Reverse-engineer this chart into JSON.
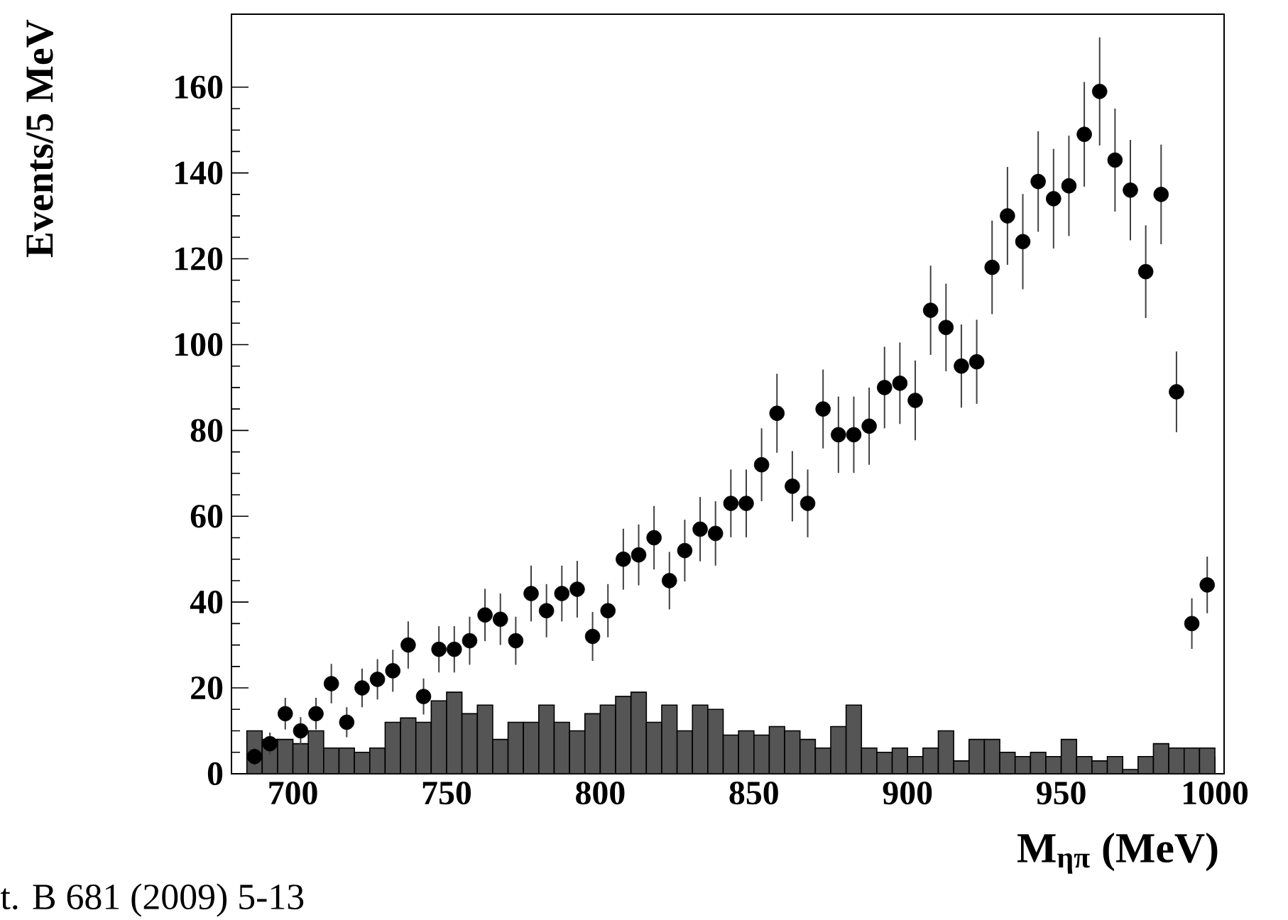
{
  "chart_data": {
    "type": "scatter",
    "xlabel": "M$_{ηπ}$ (MeV)",
    "ylabel": "Events/5 MeV",
    "xlim": [
      680,
      1003
    ],
    "ylim": [
      0,
      177
    ],
    "xticks": [
      700,
      750,
      800,
      850,
      900,
      950,
      1000
    ],
    "yticks": [
      0,
      20,
      40,
      60,
      80,
      100,
      120,
      140,
      160
    ],
    "marker": "circle",
    "annotations": [
      "t. B 681 (2009) 5-13"
    ],
    "series": [
      {
        "type": "histogram",
        "color": "#555555",
        "bins": [
          685,
          690,
          695,
          700,
          705,
          710,
          715,
          720,
          725,
          730,
          735,
          740,
          745,
          750,
          755,
          760,
          765,
          770,
          775,
          780,
          785,
          790,
          795,
          800,
          805,
          810,
          815,
          820,
          825,
          830,
          835,
          840,
          845,
          850,
          855,
          860,
          865,
          870,
          875,
          880,
          885,
          890,
          895,
          900,
          905,
          910,
          915,
          920,
          925,
          930,
          935,
          940,
          945,
          950,
          955,
          960,
          965,
          970,
          975,
          980,
          985,
          990,
          995,
          1000
        ],
        "values": [
          10,
          8,
          8,
          7,
          10,
          6,
          6,
          5,
          6,
          12,
          13,
          12,
          17,
          19,
          14,
          16,
          8,
          12,
          12,
          16,
          12,
          10,
          14,
          16,
          18,
          19,
          12,
          16,
          10,
          16,
          15,
          9,
          10,
          9,
          11,
          10,
          8,
          6,
          11,
          16,
          6,
          5,
          6,
          4,
          6,
          10,
          3,
          8,
          8,
          5,
          4,
          5,
          4,
          8,
          4,
          3,
          4,
          1,
          4,
          7,
          6,
          6,
          6
        ]
      },
      {
        "color": "#000000",
        "x": [
          687.5,
          692.5,
          697.5,
          702.5,
          707.5,
          712.5,
          717.5,
          722.5,
          727.5,
          732.5,
          737.5,
          742.5,
          747.5,
          752.5,
          757.5,
          762.5,
          767.5,
          772.5,
          777.5,
          782.5,
          787.5,
          792.5,
          797.5,
          802.5,
          807.5,
          812.5,
          817.5,
          822.5,
          827.5,
          832.5,
          837.5,
          842.5,
          847.5,
          852.5,
          857.5,
          862.5,
          867.5,
          872.5,
          877.5,
          882.5,
          887.5,
          892.5,
          897.5,
          902.5,
          907.5,
          912.5,
          917.5,
          922.5,
          927.5,
          932.5,
          937.5,
          942.5,
          947.5,
          952.5,
          957.5,
          962.5,
          967.5,
          972.5,
          977.5,
          982.5,
          987.5,
          992.5,
          997.5
        ],
        "values": [
          4,
          7,
          14,
          10,
          14,
          21,
          12,
          20,
          22,
          24,
          30,
          18,
          29,
          29,
          31,
          37,
          36,
          31,
          42,
          38,
          42,
          43,
          32,
          38,
          50,
          51,
          55,
          45,
          52,
          57,
          56,
          63,
          63,
          72,
          84,
          67,
          63,
          85,
          79,
          79,
          81,
          90,
          91,
          87,
          108,
          104,
          95,
          96,
          118,
          130,
          124,
          138,
          134,
          137,
          149,
          159,
          143,
          136,
          117,
          135,
          89,
          35,
          44
        ],
        "errors": [
          2.0,
          2.6,
          3.7,
          3.2,
          3.7,
          4.6,
          3.5,
          4.5,
          4.7,
          4.9,
          5.5,
          4.2,
          5.4,
          5.4,
          5.6,
          6.1,
          6.0,
          5.6,
          6.5,
          6.2,
          6.5,
          6.6,
          5.7,
          6.2,
          7.1,
          7.1,
          7.4,
          6.7,
          7.2,
          7.5,
          7.5,
          7.9,
          7.9,
          8.5,
          9.2,
          8.2,
          7.9,
          9.2,
          8.9,
          8.9,
          9.0,
          9.5,
          9.5,
          9.3,
          10.4,
          10.2,
          9.7,
          9.8,
          10.9,
          11.4,
          11.1,
          11.7,
          11.6,
          11.7,
          12.2,
          12.6,
          12.0,
          11.7,
          10.8,
          11.6,
          9.4,
          5.9,
          6.6
        ]
      }
    ]
  }
}
